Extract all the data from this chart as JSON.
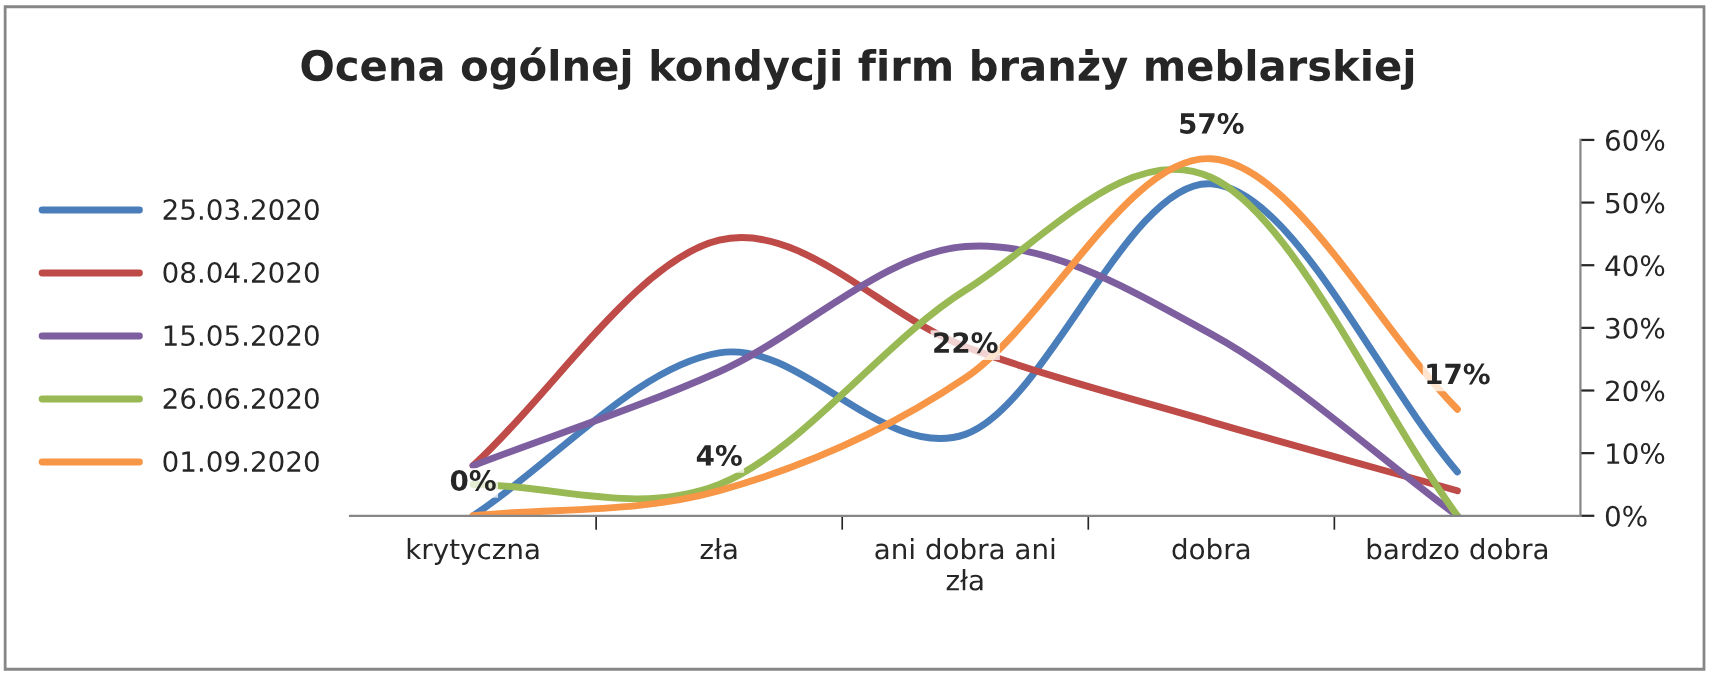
{
  "chart_data": {
    "type": "line",
    "title": "Ocena ogólnej kondycji firm branży meblarskiej",
    "categories": [
      "krytyczna",
      "zła",
      "ani dobra ani zła",
      "dobra",
      "bardzo dobra"
    ],
    "series": [
      {
        "name": "25.03.2020",
        "color": "#4a7ebb",
        "values": [
          0,
          26,
          13,
          53,
          7
        ]
      },
      {
        "name": "08.04.2020",
        "color": "#be4b48",
        "values": [
          8,
          44,
          27,
          15,
          4
        ]
      },
      {
        "name": "15.05.2020",
        "color": "#7d5fa0",
        "values": [
          8,
          23,
          43,
          29,
          0
        ]
      },
      {
        "name": "26.06.2020",
        "color": "#98b954",
        "values": [
          5,
          5,
          36,
          54,
          0
        ]
      },
      {
        "name": "01.09.2020",
        "color": "#f79646",
        "values": [
          0,
          4,
          22,
          57,
          17
        ],
        "value_labels": [
          "0%",
          "4%",
          "22%",
          "57%",
          "17%"
        ]
      }
    ],
    "ylim": [
      0,
      60
    ],
    "yticks": [
      {
        "value": 0,
        "label": "0%"
      },
      {
        "value": 10,
        "label": "10%"
      },
      {
        "value": 20,
        "label": "20%"
      },
      {
        "value": 30,
        "label": "30%"
      },
      {
        "value": 40,
        "label": "40%"
      },
      {
        "value": 50,
        "label": "50%"
      },
      {
        "value": 60,
        "label": "60%"
      }
    ],
    "legend": "left",
    "grid": false,
    "marker": "none",
    "line_style": "solid"
  }
}
